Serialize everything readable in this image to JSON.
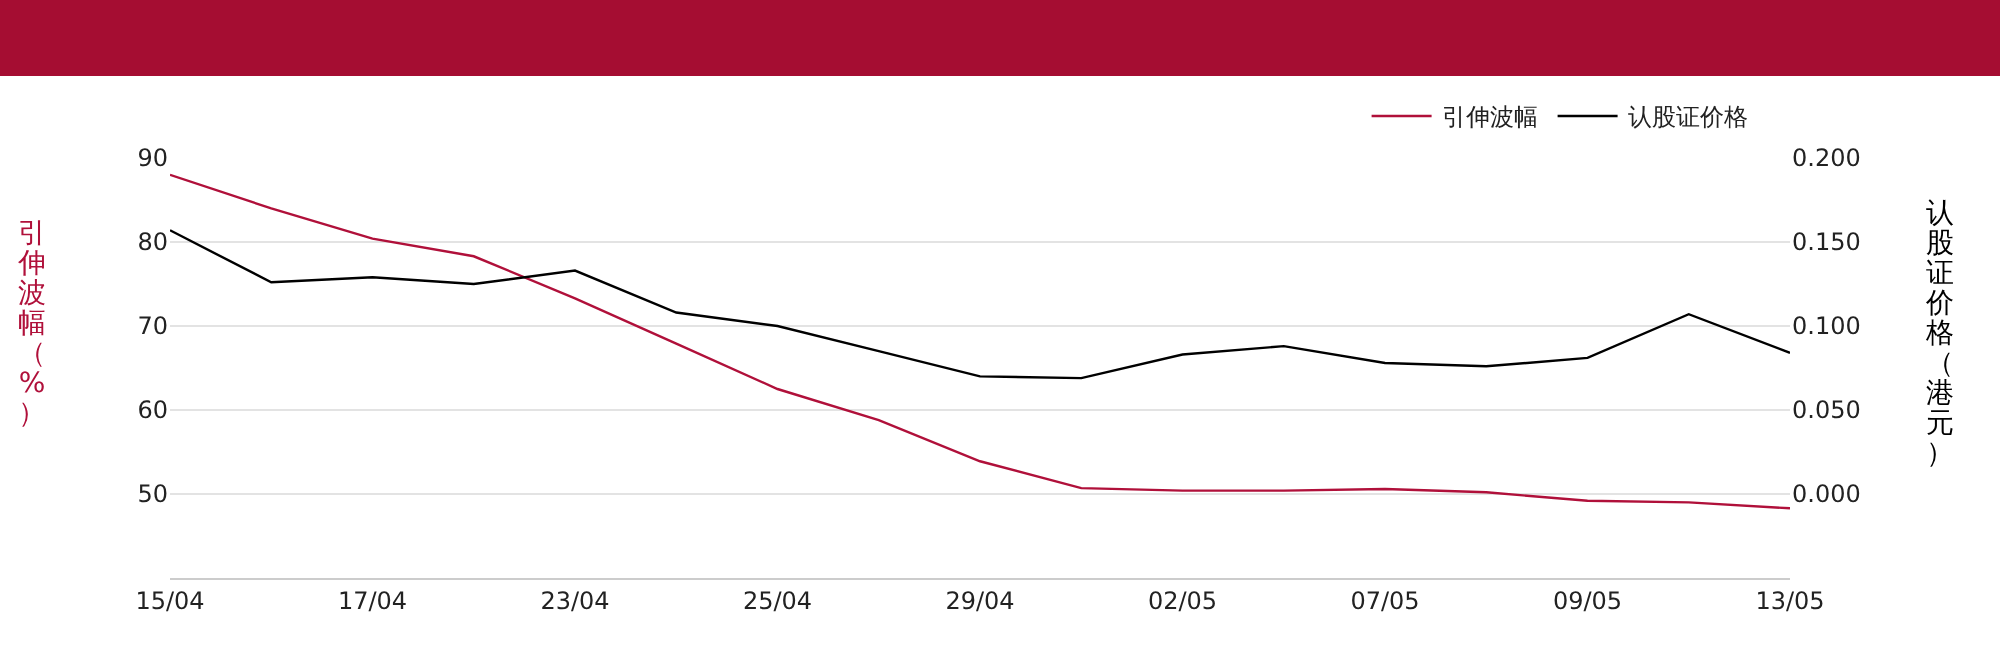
{
  "chart_data": {
    "type": "line",
    "ylabel": "引伸波幅（%）",
    "y2label": "认股证价格（港元）",
    "categories": [
      "15/04",
      null,
      "17/04",
      null,
      "23/04",
      null,
      "25/04",
      null,
      "29/04",
      null,
      "02/05",
      null,
      "07/05",
      null,
      "09/05",
      null,
      "13/05"
    ],
    "series": [
      {
        "name": "引伸波幅",
        "color": "#b0103a",
        "values": [
          88.0,
          84.0,
          80.4,
          78.3,
          73.3,
          67.9,
          62.5,
          58.8,
          53.9,
          50.7,
          50.4,
          50.4,
          50.6,
          50.2,
          49.2,
          49.0,
          48.3
        ]
      },
      {
        "name": "认股证价格",
        "color": "#000000",
        "axis": "y2",
        "values": [
          0.157,
          0.126,
          0.129,
          0.125,
          0.133,
          0.108,
          0.1,
          0.085,
          0.07,
          0.069,
          0.083,
          0.088,
          0.078,
          0.076,
          0.081,
          0.107,
          0.084
        ]
      }
    ],
    "ylim": [
      40,
      90
    ],
    "yticks": [
      50,
      60,
      70,
      80,
      90
    ],
    "y2lim": [
      -0.05,
      0.2
    ],
    "y2ticks": [
      {
        "value": 0,
        "label": "0.000"
      },
      {
        "value": 0.05,
        "label": "0.050"
      },
      {
        "value": 0.1,
        "label": "0.100"
      },
      {
        "value": 0.15,
        "label": "0.150"
      },
      {
        "value": 0.2,
        "label": "0.200"
      }
    ],
    "grid": "y",
    "legend": "top right",
    "marker": "none",
    "line_style": "solid"
  }
}
